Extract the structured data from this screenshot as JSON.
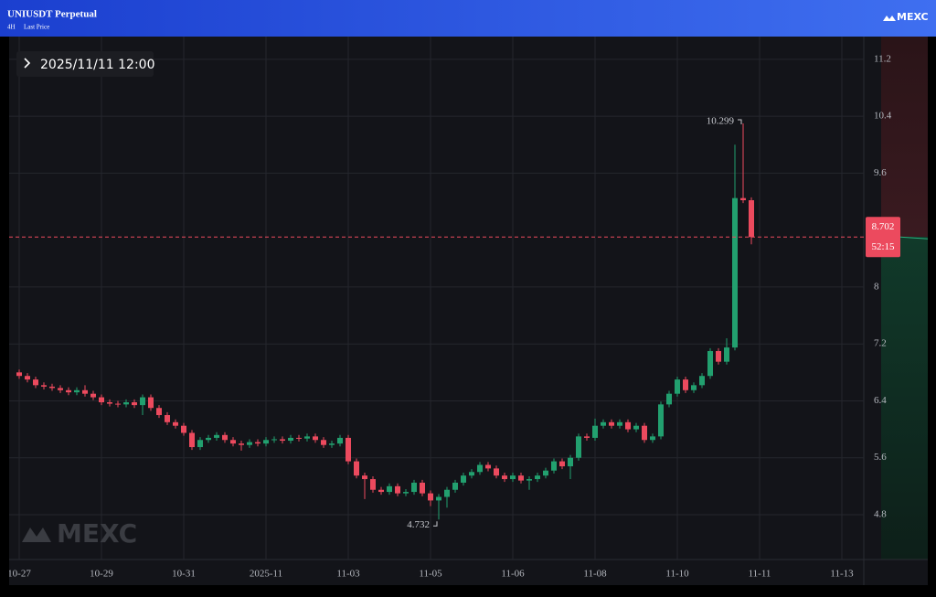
{
  "header": {
    "title": "UNIUSDT Perpetual",
    "interval": "4H",
    "price_type": "Last Price",
    "brand": "MEXC"
  },
  "chart_data": {
    "type": "candlestick",
    "time": "2025/11/11 12:00",
    "watermark": "MEXC",
    "countdown": "52:15",
    "categories": [
      "10-27",
      null,
      null,
      null,
      null,
      null,
      null,
      null,
      null,
      null,
      "10-29",
      null,
      null,
      null,
      null,
      null,
      null,
      null,
      null,
      null,
      "10-31",
      null,
      null,
      null,
      null,
      null,
      null,
      null,
      null,
      null,
      "2025-11",
      null,
      null,
      null,
      null,
      null,
      null,
      null,
      null,
      null,
      "11-03",
      null,
      null,
      null,
      null,
      null,
      null,
      null,
      null,
      null,
      "11-05",
      null,
      null,
      null,
      null,
      null,
      null,
      null,
      null,
      null,
      "11-06",
      null,
      null,
      null,
      null,
      null,
      null,
      null,
      null,
      null,
      "11-08",
      null,
      null,
      null,
      null,
      null,
      null,
      null,
      null,
      null,
      "11-10",
      null,
      null,
      null,
      null,
      null,
      null,
      null,
      null,
      null,
      "11-11",
      null,
      null,
      null,
      null,
      null,
      null,
      null,
      null,
      null,
      "11-13"
    ],
    "open": [
      6.8,
      6.75,
      6.7,
      6.62,
      6.6,
      6.58,
      6.55,
      6.52,
      6.55,
      6.5,
      6.45,
      6.38,
      6.36,
      6.35,
      6.38,
      6.34,
      6.45,
      6.3,
      6.2,
      6.1,
      6.05,
      5.95,
      5.75,
      5.85,
      5.88,
      5.92,
      5.85,
      5.8,
      5.78,
      5.82,
      5.8,
      5.85,
      5.86,
      5.84,
      5.88,
      5.87,
      5.9,
      5.85,
      5.78,
      5.8,
      5.88,
      5.55,
      5.35,
      5.3,
      5.15,
      5.12,
      5.2,
      5.1,
      5.12,
      5.25,
      5.1,
      5.0,
      5.05,
      5.15,
      5.25,
      5.35,
      5.4,
      5.5,
      5.45,
      5.35,
      5.3,
      5.35,
      5.28,
      5.3,
      5.35,
      5.42,
      5.55,
      5.48,
      5.6,
      5.9,
      5.88,
      6.05,
      6.1,
      6.05,
      6.1,
      6.0,
      6.05,
      5.85,
      5.9,
      6.35,
      6.5,
      6.7,
      6.55,
      6.62,
      6.75,
      7.1,
      6.95,
      7.15,
      9.25,
      9.22,
      null,
      null,
      null,
      null,
      null,
      null,
      null,
      null,
      null,
      null,
      null
    ],
    "high": [
      6.84,
      6.79,
      6.74,
      6.66,
      6.64,
      6.62,
      6.59,
      6.59,
      6.62,
      6.54,
      6.49,
      6.42,
      6.4,
      6.42,
      6.42,
      6.49,
      6.49,
      6.34,
      6.24,
      6.14,
      6.09,
      5.99,
      5.89,
      5.92,
      5.96,
      5.96,
      5.89,
      5.84,
      5.86,
      5.86,
      5.89,
      5.9,
      5.9,
      5.92,
      5.92,
      5.94,
      5.94,
      5.89,
      5.84,
      5.92,
      5.92,
      5.59,
      5.39,
      5.34,
      5.19,
      5.24,
      5.24,
      5.16,
      5.29,
      5.29,
      5.14,
      5.09,
      5.19,
      5.29,
      5.39,
      5.44,
      5.54,
      5.54,
      5.49,
      5.39,
      5.39,
      5.39,
      5.34,
      5.39,
      5.46,
      5.59,
      5.59,
      5.64,
      5.94,
      5.94,
      6.15,
      6.14,
      6.14,
      6.14,
      6.14,
      6.09,
      6.09,
      5.94,
      6.39,
      6.54,
      6.74,
      6.74,
      6.66,
      6.79,
      7.14,
      7.14,
      7.28,
      10.0,
      10.299,
      9.26,
      null,
      null,
      null,
      null,
      null,
      null,
      null,
      null,
      null,
      null,
      null
    ],
    "low": [
      6.71,
      6.66,
      6.58,
      6.56,
      6.54,
      6.51,
      6.48,
      6.48,
      6.46,
      6.41,
      6.34,
      6.32,
      6.31,
      6.31,
      6.3,
      6.2,
      6.26,
      6.16,
      6.06,
      6.01,
      5.91,
      5.71,
      5.71,
      5.81,
      5.84,
      5.81,
      5.76,
      5.7,
      5.74,
      5.76,
      5.76,
      5.81,
      5.8,
      5.8,
      5.83,
      5.83,
      5.81,
      5.74,
      5.74,
      5.76,
      5.51,
      5.31,
      5.02,
      5.11,
      5.08,
      5.08,
      5.06,
      5.06,
      5.08,
      5.06,
      4.92,
      4.732,
      4.9,
      5.11,
      5.21,
      5.31,
      5.36,
      5.41,
      5.31,
      5.26,
      5.26,
      5.24,
      5.15,
      5.26,
      5.31,
      5.38,
      5.44,
      5.3,
      5.56,
      5.84,
      5.84,
      6.01,
      6.01,
      6.01,
      5.96,
      5.96,
      5.81,
      5.81,
      5.86,
      6.31,
      6.46,
      6.51,
      6.51,
      6.58,
      6.71,
      6.91,
      6.91,
      7.11,
      9.18,
      8.6,
      null,
      null,
      null,
      null,
      null,
      null,
      null,
      null,
      null,
      null,
      null
    ],
    "close": [
      6.75,
      6.7,
      6.62,
      6.6,
      6.58,
      6.55,
      6.52,
      6.55,
      6.5,
      6.45,
      6.38,
      6.36,
      6.35,
      6.38,
      6.34,
      6.45,
      6.3,
      6.2,
      6.1,
      6.05,
      5.95,
      5.75,
      5.85,
      5.88,
      5.92,
      5.85,
      5.8,
      5.78,
      5.82,
      5.8,
      5.85,
      5.86,
      5.84,
      5.88,
      5.87,
      5.9,
      5.85,
      5.78,
      5.8,
      5.88,
      5.55,
      5.35,
      5.3,
      5.15,
      5.12,
      5.2,
      5.1,
      5.12,
      5.25,
      5.1,
      5.0,
      5.05,
      5.15,
      5.25,
      5.35,
      5.4,
      5.5,
      5.45,
      5.35,
      5.3,
      5.35,
      5.28,
      5.3,
      5.35,
      5.42,
      5.55,
      5.48,
      5.6,
      5.9,
      5.88,
      6.05,
      6.1,
      6.05,
      6.1,
      6.0,
      6.05,
      5.85,
      5.9,
      6.35,
      6.5,
      6.7,
      6.55,
      6.62,
      6.75,
      7.1,
      6.95,
      7.15,
      9.25,
      9.22,
      8.702,
      null,
      null,
      null,
      null,
      null,
      null,
      null,
      null,
      null,
      null,
      null
    ],
    "up_color": "#22a06f",
    "down_color": "#ec4a5e",
    "ylim": [
      4.17,
      11.52
    ],
    "yticks": [
      4.8,
      5.6,
      6.4,
      7.2,
      8,
      9.6,
      10.4,
      11.2
    ],
    "grid": true
  }
}
